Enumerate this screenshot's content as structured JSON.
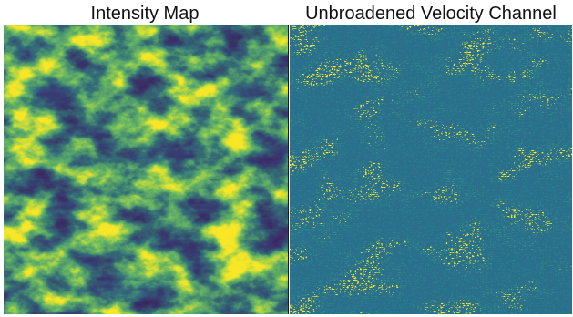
{
  "panels": [
    {
      "title": "Intensity Map",
      "colormap": [
        "#440154",
        "#3b528b",
        "#21918c",
        "#5ec962",
        "#fde725"
      ],
      "base_color": "#3f1a5e"
    },
    {
      "title": "Unbroadened Velocity Channel",
      "colormap": [
        "#2a6d8e",
        "#21918c",
        "#5ec962",
        "#fde725"
      ],
      "base_color": "#2b6f8c"
    }
  ]
}
